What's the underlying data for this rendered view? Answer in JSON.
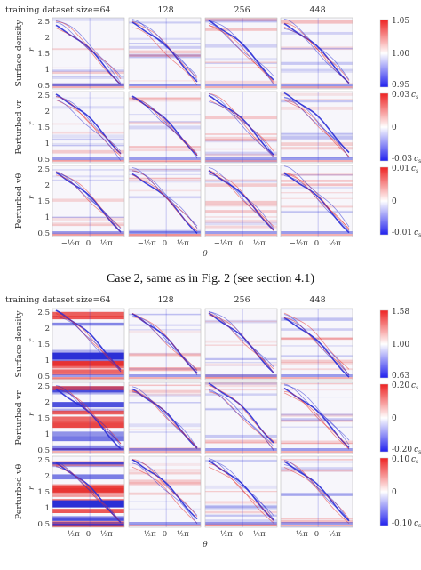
{
  "figure": {
    "caption": "Case 2, same as in Fig. 2 (see section 4.1)",
    "column_titles": [
      "training dataset size=64",
      "128",
      "256",
      "448"
    ],
    "row_labels": [
      "Surface density",
      "Perturbed v_r",
      "Perturbed v_θ"
    ],
    "row_labels_display": [
      "Surface density",
      "Perturbed vr",
      "Perturbed vθ"
    ],
    "r_axis_label": "r",
    "theta_axis_label": "θ",
    "r_ticks": [
      "2.5",
      "2",
      "1.5",
      "1",
      "0.5"
    ],
    "theta_ticks": [
      "−½π",
      "0",
      "½π"
    ]
  },
  "chart_data": [
    {
      "type": "heatmap",
      "title": "",
      "panel_set": "upper",
      "columns": [
        "training dataset size=64",
        "128",
        "256",
        "448"
      ],
      "rows": [
        {
          "name": "Surface density",
          "colorbar_ticks": [
            "1.05",
            "1.00",
            "0.95"
          ],
          "range": [
            0.95,
            1.05
          ],
          "unit": ""
        },
        {
          "name": "Perturbed v_r",
          "colorbar_ticks": [
            "0.03 c_s",
            "0",
            "-0.03 c_s"
          ],
          "range": [
            -0.03,
            0.03
          ],
          "unit": "c_s"
        },
        {
          "name": "Perturbed v_θ",
          "colorbar_ticks": [
            "0.01 c_s",
            "0",
            "-0.01 c_s"
          ],
          "range": [
            -0.01,
            0.01
          ],
          "unit": "c_s"
        }
      ],
      "xlabel": "θ",
      "ylabel": "r",
      "xlim": [
        -3.14,
        3.14
      ],
      "ylim": [
        0.4,
        2.5
      ],
      "colormap": "bwr"
    },
    {
      "type": "heatmap",
      "title": "Case 2, same as in Fig. 2 (see section 4.1)",
      "panel_set": "lower",
      "columns": [
        "training dataset size=64",
        "128",
        "256",
        "448"
      ],
      "rows": [
        {
          "name": "Surface density",
          "colorbar_ticks": [
            "1.58",
            "1.00",
            "0.63"
          ],
          "range": [
            0.63,
            1.58
          ],
          "unit": ""
        },
        {
          "name": "Perturbed v_r",
          "colorbar_ticks": [
            "0.20 c_s",
            "0",
            "-0.20 c_s"
          ],
          "range": [
            -0.2,
            0.2
          ],
          "unit": "c_s"
        },
        {
          "name": "Perturbed v_θ",
          "colorbar_ticks": [
            "0.10 c_s",
            "0",
            "-0.10 c_s"
          ],
          "range": [
            -0.1,
            0.1
          ],
          "unit": "c_s"
        }
      ],
      "xlabel": "θ",
      "ylabel": "r",
      "xlim": [
        -3.14,
        3.14
      ],
      "ylim": [
        0.4,
        2.5
      ],
      "colormap": "bwr"
    }
  ],
  "colors": {
    "red": "#e8312f",
    "blue": "#2b2fd6",
    "white": "#ffffff",
    "axis": "#666666"
  }
}
